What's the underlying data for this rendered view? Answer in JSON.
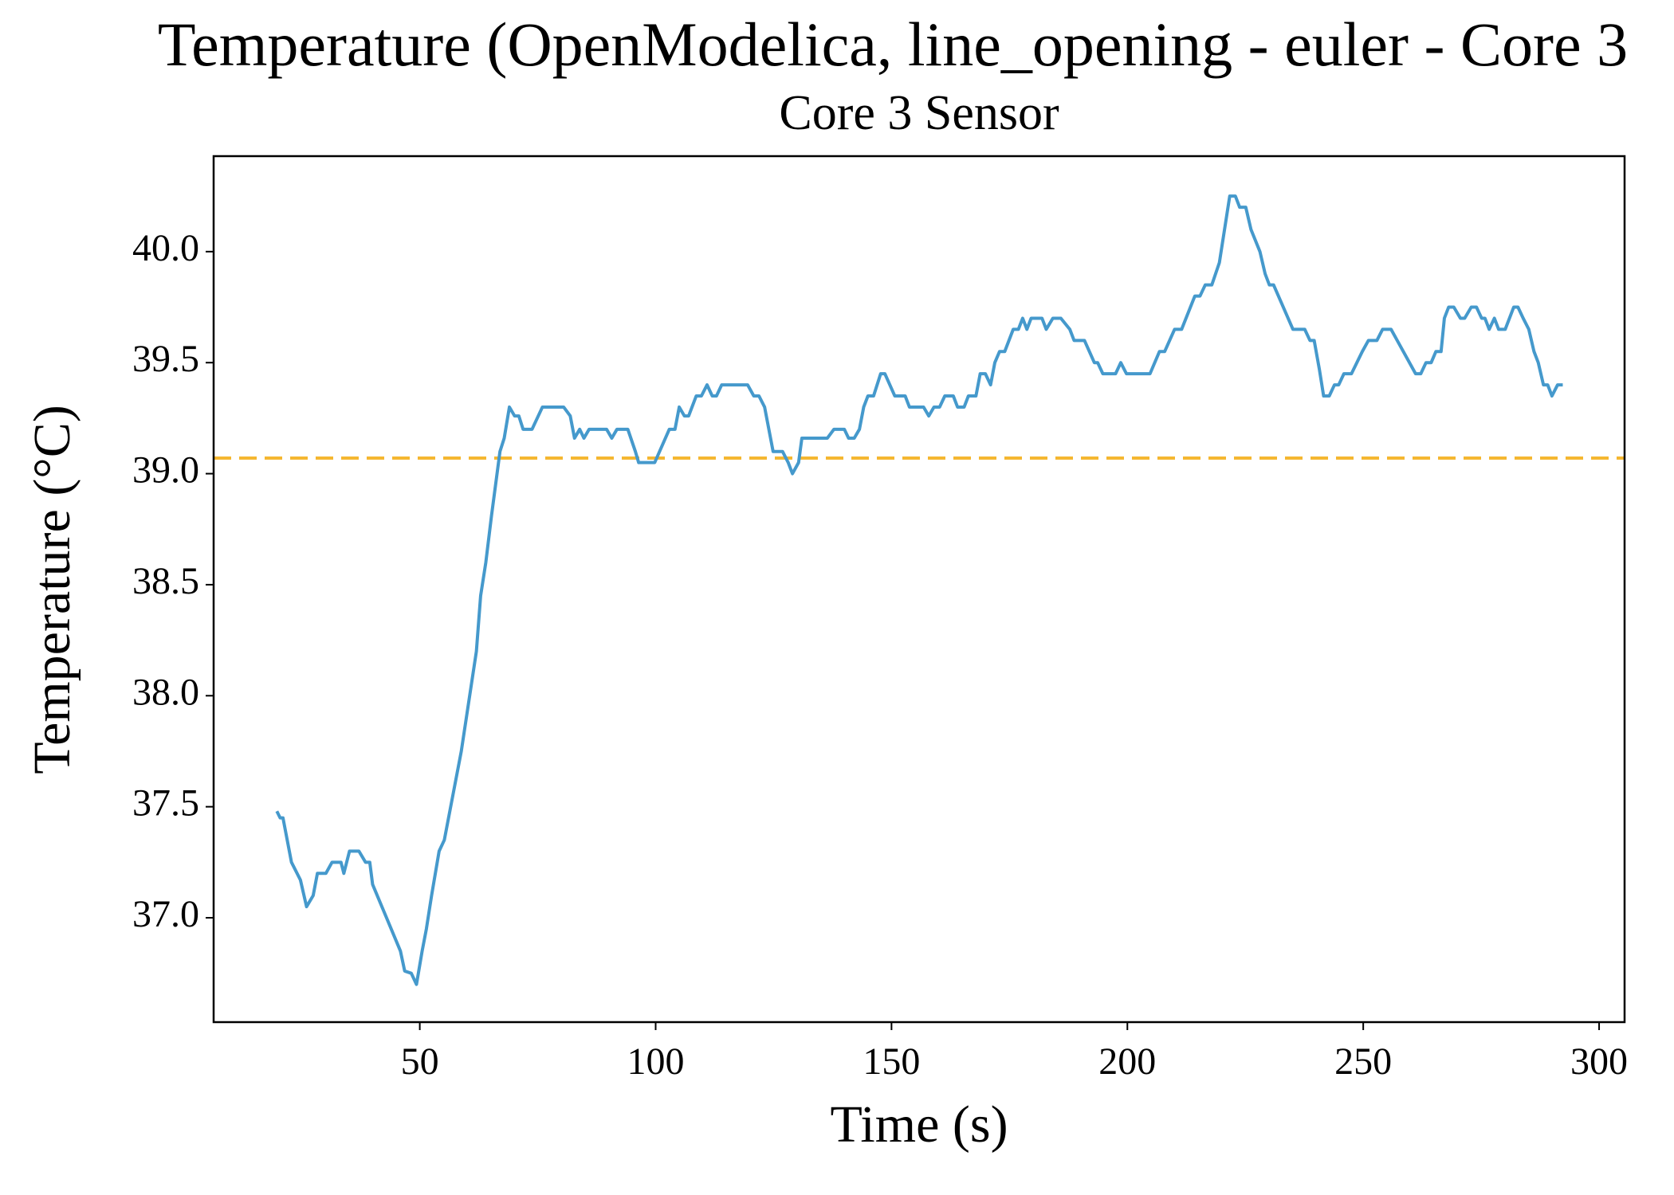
{
  "chart_data": {
    "type": "line",
    "title": "Temperature (OpenModelica, line_opening - euler - Core 3",
    "subtitle": "Core 3 Sensor",
    "x_label": "Time (s)",
    "y_label": "Temperature (°C)",
    "xlim": [
      6.3,
      305.4
    ],
    "ylim": [
      36.53,
      40.43
    ],
    "xticks": [
      50,
      100,
      150,
      200,
      250,
      300
    ],
    "yticks": [
      {
        "value": 37,
        "label": "37.0"
      },
      37.5,
      {
        "value": 38,
        "label": "38.0"
      },
      38.5,
      {
        "value": 39,
        "label": "39.0"
      },
      39.5,
      {
        "value": 40,
        "label": "40.0"
      }
    ],
    "hline": {
      "value": 39.07,
      "color": "#f5b731",
      "style": "dashed"
    },
    "x": [
      19.7,
      20.4,
      21.0,
      22.8,
      24.7,
      26.0,
      27.4,
      28.3,
      30.1,
      31.4,
      33.3,
      33.9,
      35.1,
      37.1,
      38.5,
      39.4,
      40.0,
      45.9,
      46.8,
      48.2,
      49.3,
      50.5,
      51.4,
      52.5,
      54.1,
      55.2,
      58.8,
      62.0,
      62.9,
      64.0,
      65.2,
      67.0,
      67.9,
      69.0,
      70.1,
      71.0,
      71.9,
      73.8,
      76.0,
      80.5,
      81.9,
      82.8,
      83.9,
      84.8,
      85.9,
      89.6,
      90.7,
      91.8,
      94.1,
      95.7,
      96.4,
      99.8,
      102.9,
      104.1,
      105.0,
      106.1,
      107.0,
      108.6,
      109.7,
      110.9,
      112.0,
      112.9,
      114.0,
      119.5,
      120.8,
      121.9,
      123.1,
      124.9,
      126.9,
      128.1,
      129.0,
      130.3,
      131.0,
      136.4,
      137.8,
      140.0,
      140.9,
      142.1,
      143.2,
      144.1,
      145.0,
      146.2,
      147.7,
      148.6,
      150.7,
      152.9,
      153.8,
      156.8,
      157.9,
      159.0,
      160.2,
      161.3,
      163.1,
      164.0,
      165.4,
      166.3,
      167.9,
      168.8,
      169.9,
      171.0,
      171.9,
      172.9,
      174.0,
      175.8,
      176.9,
      177.8,
      178.7,
      179.6,
      181.9,
      182.8,
      184.2,
      185.9,
      187.8,
      188.7,
      190.9,
      193.0,
      193.7,
      194.8,
      197.5,
      198.6,
      199.8,
      204.8,
      206.8,
      207.9,
      210.0,
      211.5,
      214.3,
      215.4,
      216.5,
      217.9,
      219.5,
      221.7,
      222.9,
      223.8,
      225.1,
      226.2,
      228.1,
      229.2,
      230.1,
      231.0,
      235.1,
      237.6,
      238.7,
      239.6,
      240.7,
      241.6,
      242.8,
      243.9,
      244.8,
      245.9,
      247.5,
      249.8,
      251.1,
      252.9,
      254.1,
      255.9,
      257.2,
      261.1,
      262.2,
      263.3,
      264.4,
      265.4,
      266.5,
      267.2,
      268.1,
      269.2,
      270.6,
      271.5,
      272.9,
      274.0,
      275.1,
      275.8,
      276.7,
      277.8,
      278.7,
      280.1,
      281.9,
      282.8,
      283.9,
      285.1,
      286.2,
      287.1,
      288.2,
      289.1,
      290.0,
      291.2,
      292.3
    ],
    "series": [
      {
        "color": "#4599cc",
        "values": [
          37.48,
          37.45,
          37.45,
          37.25,
          37.17,
          37.05,
          37.1,
          37.2,
          37.2,
          37.25,
          37.25,
          37.2,
          37.3,
          37.3,
          37.25,
          37.25,
          37.15,
          36.85,
          36.76,
          36.75,
          36.7,
          36.85,
          36.95,
          37.1,
          37.3,
          37.35,
          37.75,
          38.2,
          38.45,
          38.6,
          38.81,
          39.1,
          39.16,
          39.3,
          39.26,
          39.26,
          39.2,
          39.2,
          39.3,
          39.3,
          39.26,
          39.16,
          39.2,
          39.16,
          39.2,
          39.2,
          39.16,
          39.2,
          39.2,
          39.1,
          39.05,
          39.05,
          39.2,
          39.2,
          39.3,
          39.26,
          39.26,
          39.35,
          39.35,
          39.4,
          39.35,
          39.35,
          39.4,
          39.4,
          39.35,
          39.35,
          39.3,
          39.1,
          39.1,
          39.05,
          39.0,
          39.05,
          39.16,
          39.16,
          39.2,
          39.2,
          39.16,
          39.16,
          39.2,
          39.3,
          39.35,
          39.35,
          39.45,
          39.45,
          39.35,
          39.35,
          39.3,
          39.3,
          39.26,
          39.3,
          39.3,
          39.35,
          39.35,
          39.3,
          39.3,
          39.35,
          39.35,
          39.45,
          39.45,
          39.4,
          39.5,
          39.55,
          39.55,
          39.65,
          39.65,
          39.7,
          39.65,
          39.7,
          39.7,
          39.65,
          39.7,
          39.7,
          39.65,
          39.6,
          39.6,
          39.5,
          39.5,
          39.45,
          39.45,
          39.5,
          39.45,
          39.45,
          39.55,
          39.55,
          39.65,
          39.65,
          39.8,
          39.8,
          39.85,
          39.85,
          39.95,
          40.25,
          40.25,
          40.2,
          40.2,
          40.1,
          40.0,
          39.9,
          39.85,
          39.85,
          39.65,
          39.65,
          39.6,
          39.6,
          39.47,
          39.35,
          39.35,
          39.4,
          39.4,
          39.45,
          39.45,
          39.55,
          39.6,
          39.6,
          39.65,
          39.65,
          39.6,
          39.45,
          39.45,
          39.5,
          39.5,
          39.55,
          39.55,
          39.7,
          39.75,
          39.75,
          39.7,
          39.7,
          39.75,
          39.75,
          39.7,
          39.7,
          39.65,
          39.7,
          39.65,
          39.65,
          39.75,
          39.75,
          39.7,
          39.65,
          39.55,
          39.5,
          39.4,
          39.4,
          39.35,
          39.4,
          39.4
        ]
      }
    ]
  }
}
